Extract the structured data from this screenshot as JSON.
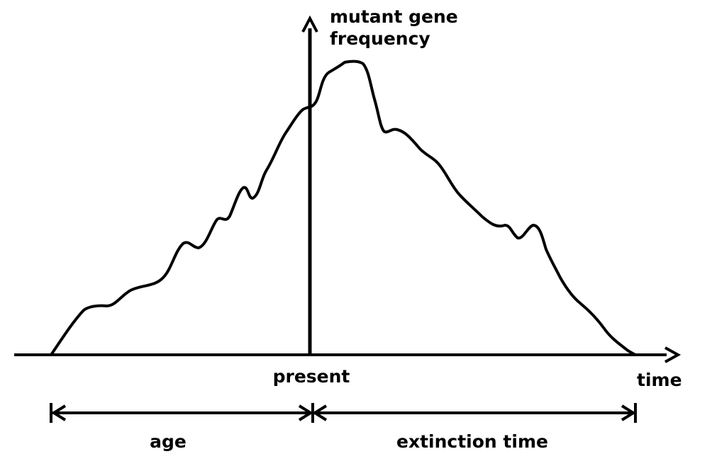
{
  "labels": {
    "y_axis_line1": "mutant gene",
    "y_axis_line2": "frequency",
    "x_axis": "time",
    "present": "present",
    "age": "age",
    "extinction_time": "extinction time"
  },
  "colors": {
    "ink": "#000000",
    "background": "#ffffff"
  }
}
